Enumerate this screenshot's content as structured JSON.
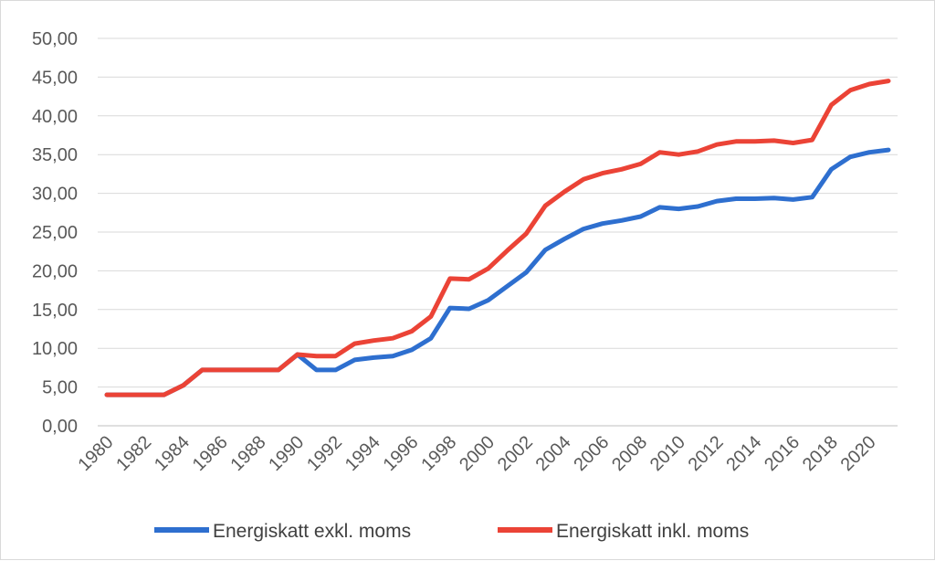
{
  "chart_data": {
    "type": "line",
    "title": "",
    "xlabel": "",
    "ylabel": "",
    "ylim": [
      0,
      50
    ],
    "yticks": [
      "0,00",
      "5,00",
      "10,00",
      "15,00",
      "20,00",
      "25,00",
      "30,00",
      "35,00",
      "40,00",
      "45,00",
      "50,00"
    ],
    "xticks": [
      "1980",
      "1982",
      "1984",
      "1986",
      "1988",
      "1990",
      "1992",
      "1994",
      "1996",
      "1998",
      "2000",
      "2002",
      "2004",
      "2006",
      "2008",
      "2010",
      "2012",
      "2014",
      "2016",
      "2018",
      "2020"
    ],
    "grid": true,
    "legend_position": "bottom",
    "x": [
      1980,
      1981,
      1982,
      1983,
      1984,
      1985,
      1986,
      1987,
      1988,
      1989,
      1990,
      1991,
      1992,
      1993,
      1994,
      1995,
      1996,
      1997,
      1998,
      1999,
      2000,
      2001,
      2002,
      2003,
      2004,
      2005,
      2006,
      2007,
      2008,
      2009,
      2010,
      2011,
      2012,
      2013,
      2014,
      2015,
      2016,
      2017,
      2018,
      2019,
      2020,
      2021
    ],
    "series": [
      {
        "name": "Energiskatt exkl. moms",
        "color": "#2e6fcf",
        "values": [
          4.0,
          4.0,
          4.0,
          4.0,
          5.2,
          7.2,
          7.2,
          7.2,
          7.2,
          7.2,
          9.2,
          7.2,
          7.2,
          8.5,
          8.8,
          9.0,
          9.8,
          11.3,
          15.2,
          15.1,
          16.2,
          18.0,
          19.8,
          22.7,
          24.1,
          25.4,
          26.1,
          26.5,
          27.0,
          28.2,
          28.0,
          28.3,
          29.0,
          29.3,
          29.3,
          29.4,
          29.2,
          29.5,
          33.1,
          34.7,
          35.3,
          35.6
        ]
      },
      {
        "name": "Energiskatt inkl. moms",
        "color": "#eb4336",
        "values": [
          4.0,
          4.0,
          4.0,
          4.0,
          5.2,
          7.2,
          7.2,
          7.2,
          7.2,
          7.2,
          9.2,
          9.0,
          9.0,
          10.6,
          11.0,
          11.3,
          12.2,
          14.1,
          19.0,
          18.9,
          20.3,
          22.6,
          24.8,
          28.4,
          30.2,
          31.8,
          32.6,
          33.1,
          33.8,
          35.3,
          35.0,
          35.4,
          36.3,
          36.7,
          36.7,
          36.8,
          36.5,
          36.9,
          41.4,
          43.3,
          44.1,
          44.5
        ]
      }
    ]
  }
}
